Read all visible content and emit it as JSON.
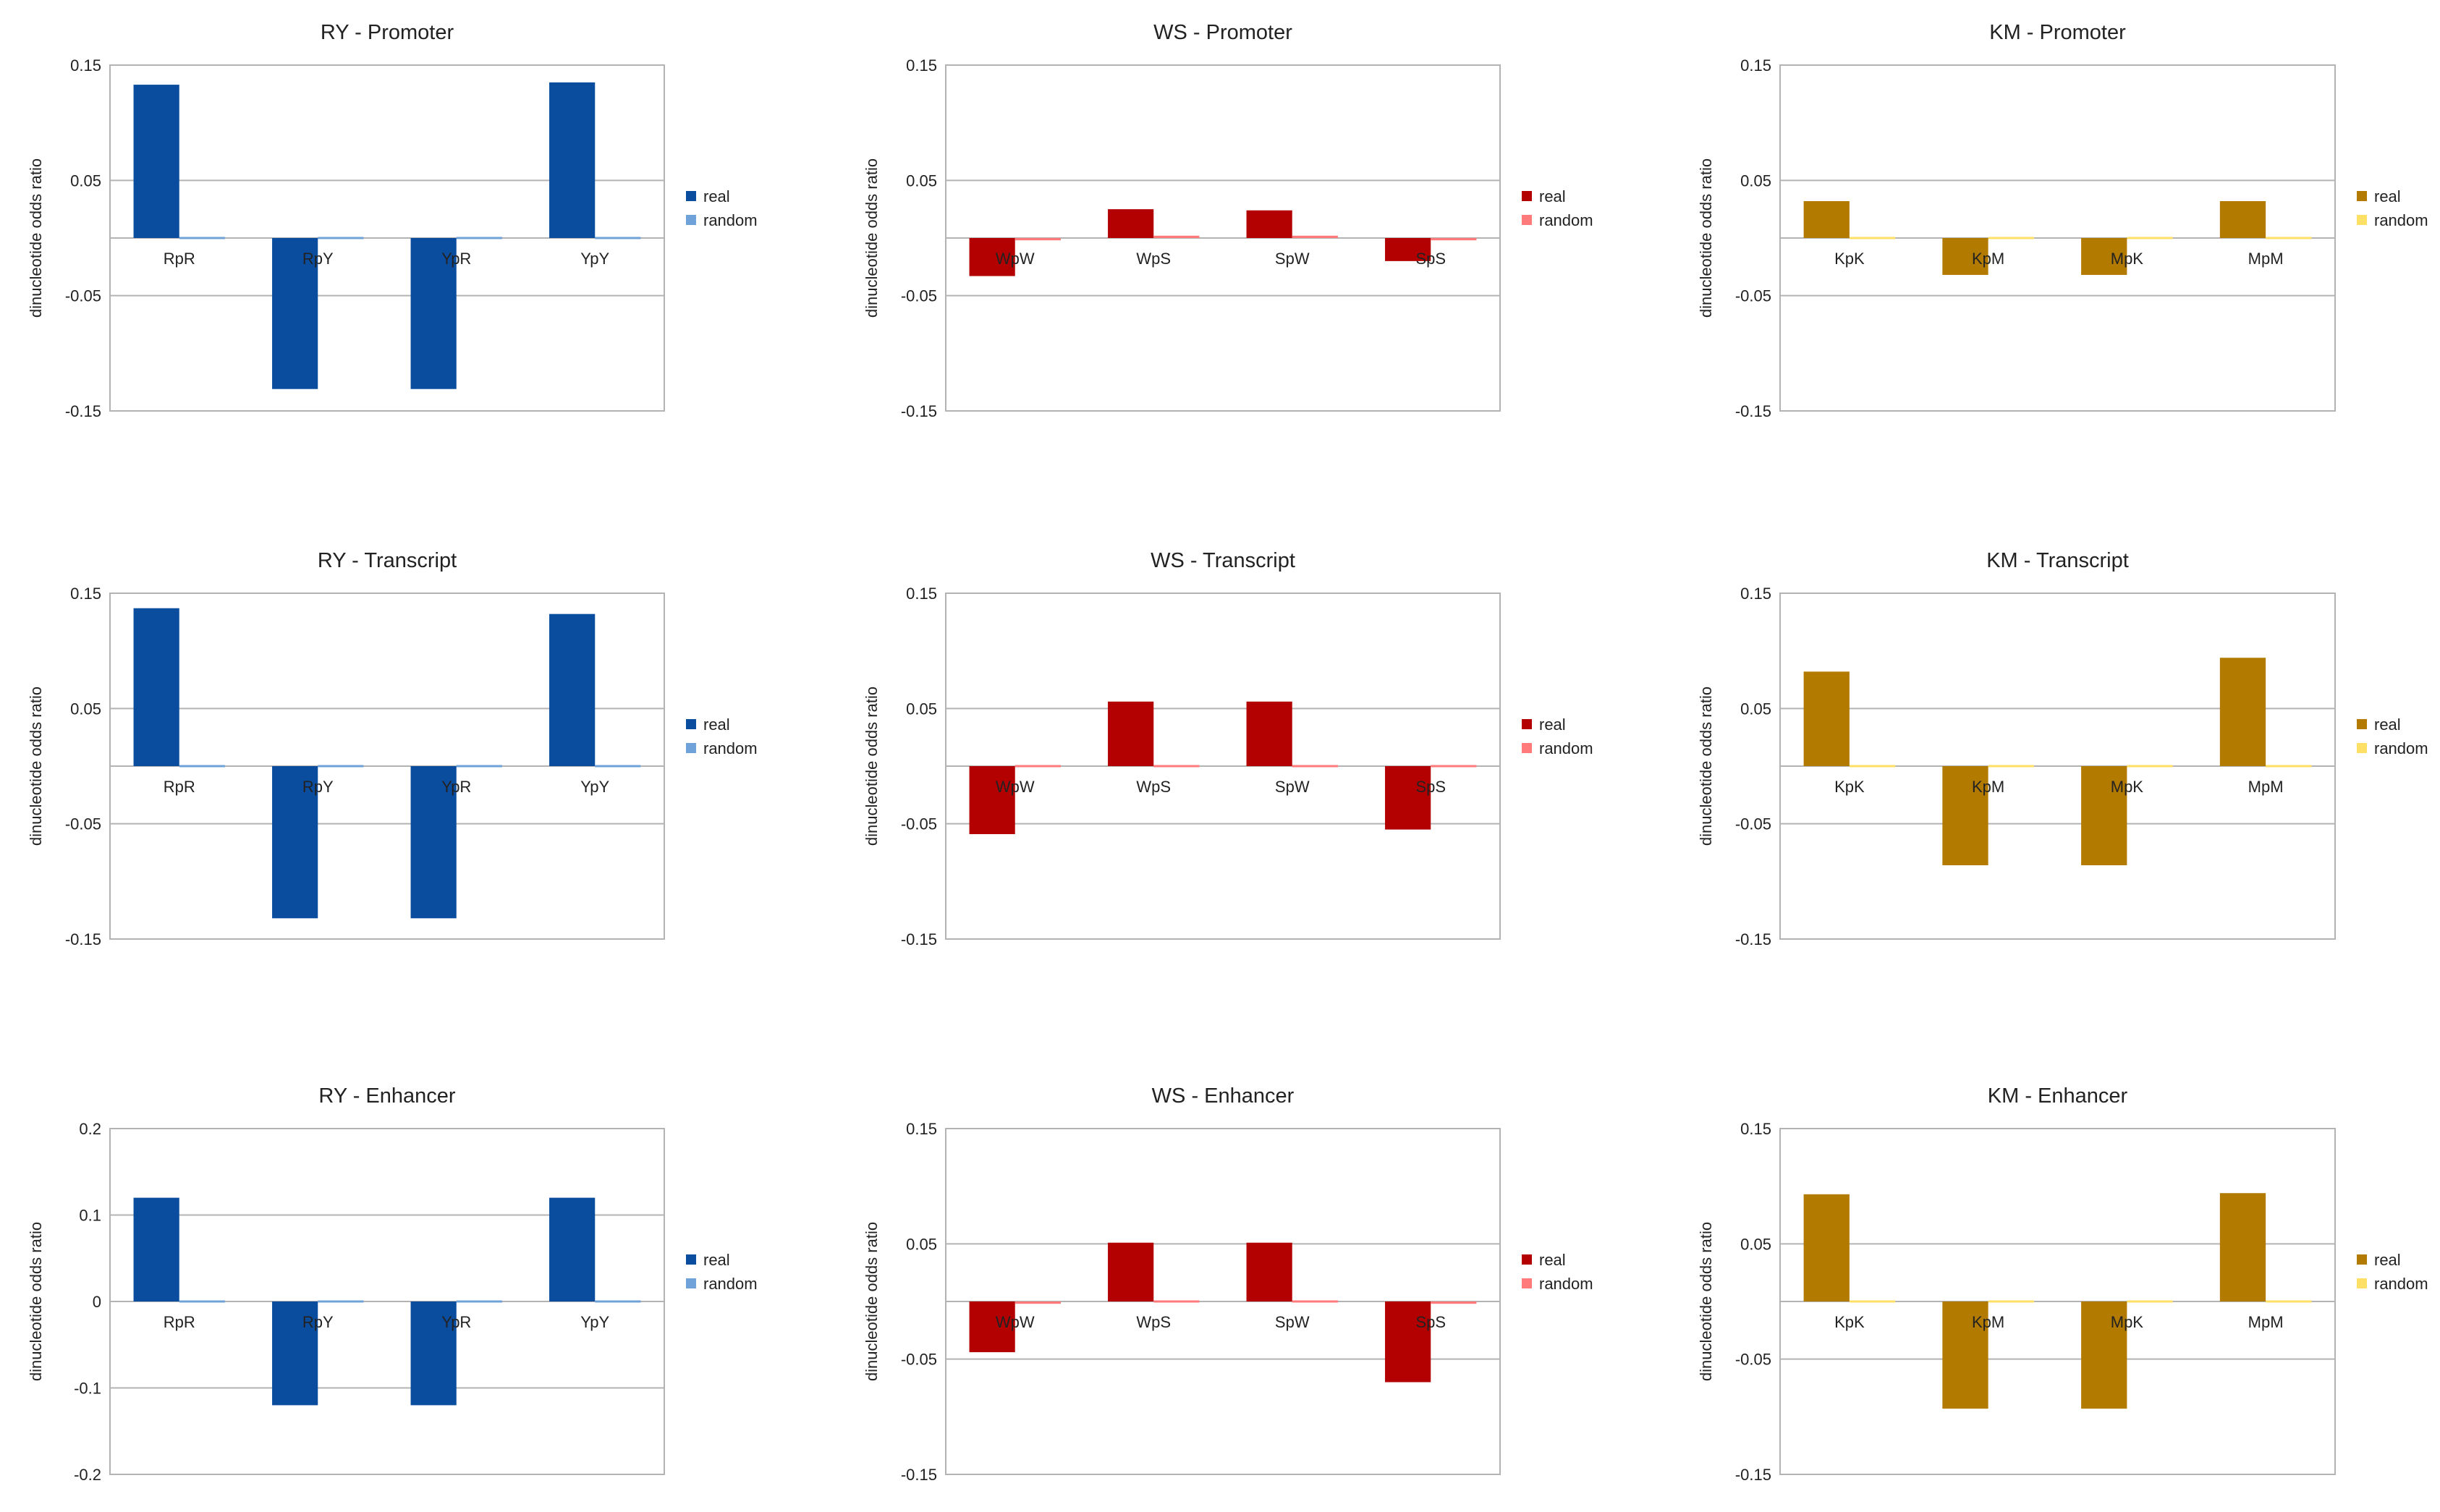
{
  "chart_data": [
    {
      "type": "bar",
      "title": "RY  -  Promoter",
      "categories": [
        "RpR",
        "RpY",
        "YpR",
        "YpY"
      ],
      "series": [
        {
          "name": "real",
          "values": [
            0.133,
            -0.131,
            -0.131,
            0.135
          ]
        },
        {
          "name": "random",
          "values": [
            -0.001,
            0.001,
            0.001,
            -0.001
          ]
        }
      ],
      "ylabel": "dinucleotide odds ratio",
      "yticks": [
        0.15,
        0.05,
        -0.05,
        -0.15
      ],
      "ytick_labels": [
        "0.15",
        "0.05",
        "-0.05",
        "-0.15"
      ],
      "ylim": [
        -0.15,
        0.15
      ],
      "legend": [
        "real",
        "random"
      ],
      "colors": [
        "#0a4d9e",
        "#6fa2d8"
      ],
      "grid": true
    },
    {
      "type": "bar",
      "title": "WS  -  Promoter",
      "categories": [
        "WpW",
        "WpS",
        "SpW",
        "SpS"
      ],
      "series": [
        {
          "name": "real",
          "values": [
            -0.033,
            0.025,
            0.024,
            -0.02
          ]
        },
        {
          "name": "random",
          "values": [
            -0.002,
            0.002,
            0.002,
            -0.002
          ]
        }
      ],
      "ylabel": "dinucleotide odds ratio",
      "yticks": [
        0.15,
        0.05,
        -0.05,
        -0.15
      ],
      "ytick_labels": [
        "0.15",
        "0.05",
        "-0.05",
        "-0.15"
      ],
      "ylim": [
        -0.15,
        0.15
      ],
      "legend": [
        "real",
        "random"
      ],
      "colors": [
        "#b30000",
        "#ff7a7a"
      ],
      "grid": true
    },
    {
      "type": "bar",
      "title": "KM  -  Promoter",
      "categories": [
        "KpK",
        "KpM",
        "MpK",
        "MpM"
      ],
      "series": [
        {
          "name": "real",
          "values": [
            0.032,
            -0.032,
            -0.032,
            0.032
          ]
        },
        {
          "name": "random",
          "values": [
            -0.001,
            0.001,
            0.001,
            -0.001
          ]
        }
      ],
      "ylabel": "dinucleotide odds ratio",
      "yticks": [
        0.15,
        0.05,
        -0.05,
        -0.15
      ],
      "ytick_labels": [
        "0.15",
        "0.05",
        "-0.05",
        "-0.15"
      ],
      "ylim": [
        -0.15,
        0.15
      ],
      "legend": [
        "real",
        "random"
      ],
      "colors": [
        "#b37a00",
        "#ffe066"
      ],
      "grid": true
    },
    {
      "type": "bar",
      "title": "RY  -  Transcript",
      "categories": [
        "RpR",
        "RpY",
        "YpR",
        "YpY"
      ],
      "series": [
        {
          "name": "real",
          "values": [
            0.137,
            -0.132,
            -0.132,
            0.132
          ]
        },
        {
          "name": "random",
          "values": [
            0.0,
            0.0,
            0.0,
            0.0
          ]
        }
      ],
      "ylabel": "dinucleotide odds ratio",
      "yticks": [
        0.15,
        0.05,
        -0.05,
        -0.15
      ],
      "ytick_labels": [
        "0.15",
        "0.05",
        "-0.05",
        "-0.15"
      ],
      "ylim": [
        -0.15,
        0.15
      ],
      "legend": [
        "real",
        "random"
      ],
      "colors": [
        "#0a4d9e",
        "#6fa2d8"
      ],
      "grid": true
    },
    {
      "type": "bar",
      "title": "WS  -  Transcript",
      "categories": [
        "WpW",
        "WpS",
        "SpW",
        "SpS"
      ],
      "series": [
        {
          "name": "real",
          "values": [
            -0.059,
            0.056,
            0.056,
            -0.055
          ]
        },
        {
          "name": "random",
          "values": [
            0.0,
            0.0,
            0.0,
            0.0
          ]
        }
      ],
      "ylabel": "dinucleotide odds ratio",
      "yticks": [
        0.15,
        0.05,
        -0.05,
        -0.15
      ],
      "ytick_labels": [
        "0.15",
        "0.05",
        "-0.05",
        "-0.15"
      ],
      "ylim": [
        -0.15,
        0.15
      ],
      "legend": [
        "real",
        "random"
      ],
      "colors": [
        "#b30000",
        "#ff7a7a"
      ],
      "grid": true
    },
    {
      "type": "bar",
      "title": "KM  -  Transcript",
      "categories": [
        "KpK",
        "KpM",
        "MpK",
        "MpM"
      ],
      "series": [
        {
          "name": "real",
          "values": [
            0.082,
            -0.086,
            -0.086,
            0.094
          ]
        },
        {
          "name": "random",
          "values": [
            0.0,
            0.0,
            0.0,
            0.0
          ]
        }
      ],
      "ylabel": "dinucleotide odds ratio",
      "yticks": [
        0.15,
        0.05,
        -0.05,
        -0.15
      ],
      "ytick_labels": [
        "0.15",
        "0.05",
        "-0.05",
        "-0.15"
      ],
      "ylim": [
        -0.15,
        0.15
      ],
      "legend": [
        "real",
        "random"
      ],
      "colors": [
        "#b37a00",
        "#ffe066"
      ],
      "grid": true
    },
    {
      "type": "bar",
      "title": "RY  -  Enhancer",
      "categories": [
        "RpR",
        "RpY",
        "YpR",
        "YpY"
      ],
      "series": [
        {
          "name": "real",
          "values": [
            0.12,
            -0.12,
            -0.12,
            0.12
          ]
        },
        {
          "name": "random",
          "values": [
            -0.001,
            0.001,
            0.001,
            -0.001
          ]
        }
      ],
      "ylabel": "dinucleotide odds ratio",
      "yticks": [
        0.2,
        0.1,
        0,
        -0.1,
        -0.2
      ],
      "ytick_labels": [
        "0.2",
        "0.1",
        "0",
        "-0.1",
        "-0.2"
      ],
      "ylim": [
        -0.2,
        0.2
      ],
      "legend": [
        "real",
        "random"
      ],
      "colors": [
        "#0a4d9e",
        "#6fa2d8"
      ],
      "grid": true
    },
    {
      "type": "bar",
      "title": "WS  -  Enhancer",
      "categories": [
        "WpW",
        "WpS",
        "SpW",
        "SpS"
      ],
      "series": [
        {
          "name": "real",
          "values": [
            -0.044,
            0.051,
            0.051,
            -0.07
          ]
        },
        {
          "name": "random",
          "values": [
            -0.002,
            0.001,
            0.001,
            -0.002
          ]
        }
      ],
      "ylabel": "dinucleotide odds ratio",
      "yticks": [
        0.15,
        0.05,
        -0.05,
        -0.15
      ],
      "ytick_labels": [
        "0.15",
        "0.05",
        "-0.05",
        "-0.15"
      ],
      "ylim": [
        -0.15,
        0.15
      ],
      "legend": [
        "real",
        "random"
      ],
      "colors": [
        "#b30000",
        "#ff7a7a"
      ],
      "grid": true
    },
    {
      "type": "bar",
      "title": "KM  -  Enhancer",
      "categories": [
        "KpK",
        "KpM",
        "MpK",
        "MpM"
      ],
      "series": [
        {
          "name": "real",
          "values": [
            0.093,
            -0.093,
            -0.093,
            0.094
          ]
        },
        {
          "name": "random",
          "values": [
            0.0,
            0.0,
            0.0,
            0.0
          ]
        }
      ],
      "ylabel": "dinucleotide odds ratio",
      "yticks": [
        0.15,
        0.05,
        -0.05,
        -0.15
      ],
      "ytick_labels": [
        "0.15",
        "0.05",
        "-0.05",
        "-0.15"
      ],
      "ylim": [
        -0.15,
        0.15
      ],
      "legend": [
        "real",
        "random"
      ],
      "colors": [
        "#b37a00",
        "#ffe066"
      ],
      "grid": true
    }
  ]
}
